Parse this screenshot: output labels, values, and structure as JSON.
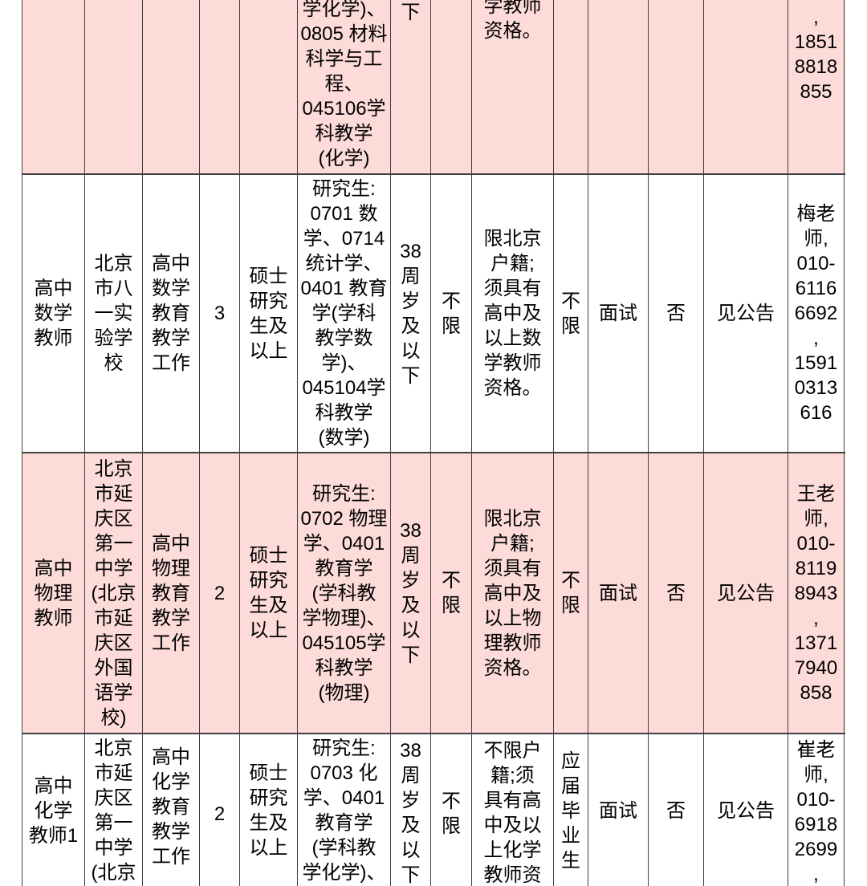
{
  "colors": {
    "row_pink": "#fcdbd9",
    "row_white": "#ffffff",
    "border": "#404040",
    "text": "#000000"
  },
  "table": {
    "rows": [
      {
        "bg": "pink",
        "cells": [
          [],
          [],
          [],
          [],
          [],
          [
            "学化学)、",
            "0805 材料",
            "科学与工",
            "程、",
            "045106学",
            "科教学",
            "(化学)"
          ],
          [
            "下"
          ],
          [],
          [
            "学教师",
            "资格。"
          ],
          [],
          [],
          [],
          [],
          [
            ",",
            "1851",
            "8818",
            "855"
          ]
        ]
      },
      {
        "bg": "white",
        "cells": [
          [
            "高中",
            "数学",
            "教师"
          ],
          [
            "北京",
            "市八",
            "一实",
            "验学",
            "校"
          ],
          [
            "高中",
            "数学",
            "教育",
            "教学",
            "工作"
          ],
          [
            "3"
          ],
          [
            "硕士",
            "研究",
            "生及",
            "以上"
          ],
          [
            "研究生:",
            "0701 数",
            "学、0714",
            "统计学、",
            "0401 教育",
            "学(学科",
            "教学数",
            "学)、",
            "045104学",
            "科教学",
            "(数学)"
          ],
          [
            "38",
            "周",
            "岁",
            "及",
            "以",
            "下"
          ],
          [
            "不",
            "限"
          ],
          [
            "限北京",
            "户籍;",
            "须具有",
            "高中及",
            "以上数",
            "学教师",
            "资格。"
          ],
          [
            "不",
            "限"
          ],
          [
            "面试"
          ],
          [
            "否"
          ],
          [
            "见公告"
          ],
          [
            "梅老",
            "师,",
            "010-",
            "6116",
            "6692",
            ",",
            "1591",
            "0313",
            "616"
          ]
        ]
      },
      {
        "bg": "pink",
        "cells": [
          [
            "高中",
            "物理",
            "教师"
          ],
          [
            "北京",
            "市延",
            "庆区",
            "第一",
            "中学",
            "(北京",
            "市延",
            "庆区",
            "外国",
            "语学",
            "校)"
          ],
          [
            "高中",
            "物理",
            "教育",
            "教学",
            "工作"
          ],
          [
            "2"
          ],
          [
            "硕士",
            "研究",
            "生及",
            "以上"
          ],
          [
            "研究生:",
            "0702 物理",
            "学、0401",
            "教育学",
            "(学科教",
            "学物理)、",
            "045105学",
            "科教学",
            "(物理)"
          ],
          [
            "38",
            "周",
            "岁",
            "及",
            "以",
            "下"
          ],
          [
            "不",
            "限"
          ],
          [
            "限北京",
            "户籍;",
            "须具有",
            "高中及",
            "以上物",
            "理教师",
            "资格。"
          ],
          [
            "不",
            "限"
          ],
          [
            "面试"
          ],
          [
            "否"
          ],
          [
            "见公告"
          ],
          [
            "王老",
            "师,",
            "010-",
            "8119",
            "8943",
            ",",
            "1371",
            "7940",
            "858"
          ]
        ]
      },
      {
        "bg": "white",
        "cells": [
          [
            "高中",
            "化学",
            "教师1"
          ],
          [
            "北京",
            "市延",
            "庆区",
            "第一",
            "中学",
            "(北京"
          ],
          [
            "高中",
            "化学",
            "教育",
            "教学",
            "工作"
          ],
          [
            "2"
          ],
          [
            "硕士",
            "研究",
            "生及",
            "以上"
          ],
          [
            "研究生:",
            "0703 化",
            "学、0401",
            "教育学",
            "(学科教",
            "学化学)、"
          ],
          [
            "38",
            "周",
            "岁",
            "及",
            "以",
            "下"
          ],
          [
            "不",
            "限"
          ],
          [
            "不限户",
            "籍;须",
            "具有高",
            "中及以",
            "上化学",
            "教师资"
          ],
          [
            "应",
            "届",
            "毕",
            "业",
            "生"
          ],
          [
            "面试"
          ],
          [
            "否"
          ],
          [
            "见公告"
          ],
          [
            "崔老",
            "师,",
            "010-",
            "6918",
            "2699",
            ","
          ]
        ]
      }
    ]
  }
}
